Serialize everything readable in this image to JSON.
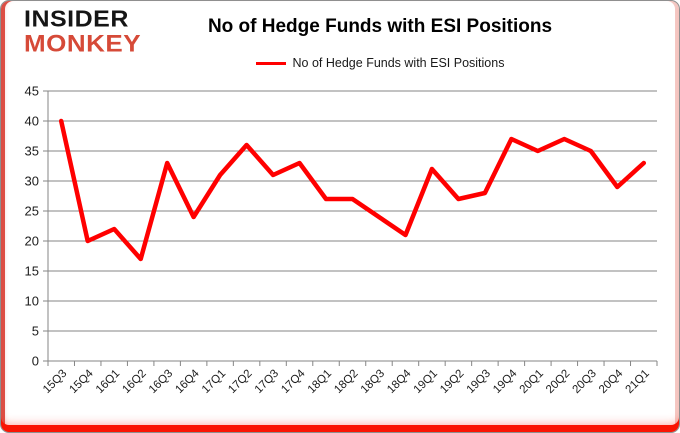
{
  "brand": {
    "line1": "INSIDER",
    "line2": "MONKEY",
    "monkey_color": "#d64a38",
    "insider_color": "#151515"
  },
  "frame_accent_colors": {
    "bottom": "#fa1403",
    "left": "#dc5046",
    "right": "#f5c9c4",
    "outline": "#8f8f8f"
  },
  "chart_data": {
    "type": "line",
    "title": "No of Hedge Funds with ESI Positions",
    "legend": [
      {
        "label": "No of Hedge Funds with ESI Positions",
        "color": "#ff0000"
      }
    ],
    "legend_position": "top",
    "grid": true,
    "xlabel": "",
    "ylabel": "",
    "ylim": [
      0,
      45
    ],
    "yticks": [
      0,
      5,
      10,
      15,
      20,
      25,
      30,
      35,
      40,
      45
    ],
    "categories": [
      "15Q3",
      "15Q4",
      "16Q1",
      "16Q2",
      "16Q3",
      "16Q4",
      "17Q1",
      "17Q2",
      "17Q3",
      "17Q4",
      "18Q1",
      "18Q2",
      "18Q3",
      "18Q4",
      "19Q1",
      "19Q2",
      "19Q3",
      "19Q4",
      "20Q1",
      "20Q2",
      "20Q3",
      "20Q4",
      "21Q1"
    ],
    "series": [
      {
        "name": "No of Hedge Funds with ESI Positions",
        "color": "#ff0000",
        "values": [
          40,
          20,
          22,
          17,
          33,
          24,
          31,
          36,
          31,
          33,
          27,
          27,
          24,
          21,
          32,
          27,
          28,
          37,
          35,
          37,
          35,
          29,
          33
        ]
      }
    ],
    "axis_color": "#868686",
    "tick_label_color": "#1c1c1c"
  }
}
